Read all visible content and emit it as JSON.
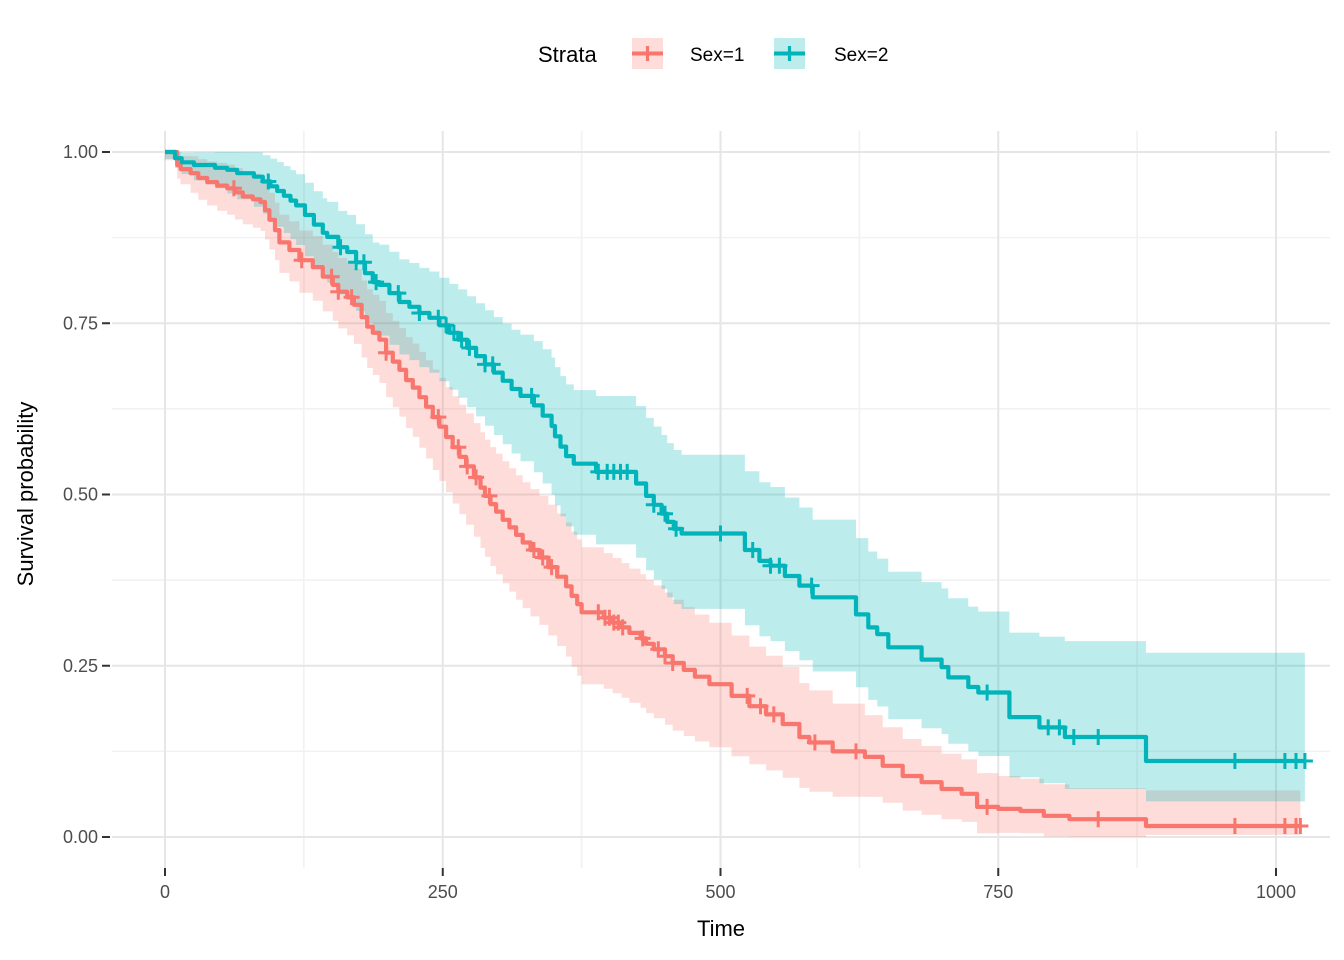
{
  "figure": {
    "background": "#FFFFFF",
    "grid_major_color": "#E6E6E6",
    "grid_minor_color": "#F1F1F1",
    "tick_mark_color": "#333333",
    "tick_label_color": "#4D4D4D"
  },
  "legend": {
    "title": "Strata",
    "items": [
      {
        "label": "Sex=1",
        "color": "#F8766D"
      },
      {
        "label": "Sex=2",
        "color": "#00B4B9"
      }
    ]
  },
  "chart_data": {
    "type": "line",
    "subtype": "kaplan-meier-step-with-confidence-bands",
    "title": "",
    "xlabel": "Time",
    "ylabel": "Survival probability",
    "xlim": [
      -15,
      1048
    ],
    "ylim": [
      0,
      1.03
    ],
    "grid": true,
    "legend_position": "top",
    "x_ticks": [
      0,
      250,
      500,
      750,
      1000
    ],
    "x_minor_ticks": [
      125,
      375,
      625,
      875
    ],
    "y_ticks": [
      0,
      0.25,
      0.5,
      0.75,
      1
    ],
    "y_tick_labels": [
      "0.00",
      "0.25",
      "0.50",
      "0.75",
      "1.00"
    ],
    "y_minor_ticks": [
      0.125,
      0.375,
      0.625,
      0.875
    ],
    "ci_opacity": 0.26,
    "series": [
      {
        "name": "Sex=1",
        "color": "#F8766D",
        "end_time": 1022,
        "steps": [
          [
            0,
            1.0
          ],
          [
            11,
            0.981
          ],
          [
            14,
            0.975
          ],
          [
            23,
            0.969
          ],
          [
            30,
            0.962
          ],
          [
            38,
            0.956
          ],
          [
            47,
            0.951
          ],
          [
            56,
            0.947
          ],
          [
            63,
            0.941
          ],
          [
            70,
            0.935
          ],
          [
            79,
            0.931
          ],
          [
            86,
            0.927
          ],
          [
            90,
            0.915
          ],
          [
            94,
            0.901
          ],
          [
            99,
            0.886
          ],
          [
            103,
            0.868
          ],
          [
            112,
            0.857
          ],
          [
            121,
            0.842
          ],
          [
            133,
            0.832
          ],
          [
            142,
            0.818
          ],
          [
            151,
            0.806
          ],
          [
            156,
            0.796
          ],
          [
            164,
            0.788
          ],
          [
            170,
            0.777
          ],
          [
            177,
            0.759
          ],
          [
            182,
            0.745
          ],
          [
            187,
            0.736
          ],
          [
            193,
            0.726
          ],
          [
            199,
            0.707
          ],
          [
            205,
            0.694
          ],
          [
            211,
            0.682
          ],
          [
            217,
            0.667
          ],
          [
            223,
            0.656
          ],
          [
            229,
            0.642
          ],
          [
            235,
            0.628
          ],
          [
            241,
            0.613
          ],
          [
            247,
            0.599
          ],
          [
            253,
            0.584
          ],
          [
            259,
            0.569
          ],
          [
            265,
            0.555
          ],
          [
            271,
            0.541
          ],
          [
            278,
            0.525
          ],
          [
            284,
            0.51
          ],
          [
            288,
            0.498
          ],
          [
            293,
            0.486
          ],
          [
            298,
            0.475
          ],
          [
            304,
            0.463
          ],
          [
            310,
            0.452
          ],
          [
            316,
            0.441
          ],
          [
            322,
            0.43
          ],
          [
            329,
            0.419
          ],
          [
            337,
            0.408
          ],
          [
            345,
            0.394
          ],
          [
            353,
            0.38
          ],
          [
            361,
            0.366
          ],
          [
            366,
            0.352
          ],
          [
            371,
            0.34
          ],
          [
            375,
            0.328
          ],
          [
            395,
            0.32
          ],
          [
            403,
            0.313
          ],
          [
            411,
            0.306
          ],
          [
            418,
            0.298
          ],
          [
            428,
            0.29
          ],
          [
            433,
            0.282
          ],
          [
            440,
            0.274
          ],
          [
            450,
            0.264
          ],
          [
            457,
            0.254
          ],
          [
            467,
            0.244
          ],
          [
            477,
            0.234
          ],
          [
            490,
            0.223
          ],
          [
            510,
            0.206
          ],
          [
            526,
            0.191
          ],
          [
            541,
            0.179
          ],
          [
            556,
            0.165
          ],
          [
            571,
            0.146
          ],
          [
            580,
            0.138
          ],
          [
            601,
            0.125
          ],
          [
            630,
            0.117
          ],
          [
            646,
            0.104
          ],
          [
            664,
            0.089
          ],
          [
            681,
            0.08
          ],
          [
            699,
            0.07
          ],
          [
            717,
            0.063
          ],
          [
            731,
            0.044
          ],
          [
            750,
            0.041
          ],
          [
            770,
            0.038
          ],
          [
            791,
            0.031
          ],
          [
            814,
            0.026
          ],
          [
            883,
            0.016
          ]
        ],
        "censor_times": [
          62,
          123,
          150,
          156,
          168,
          199,
          246,
          264,
          272,
          280,
          292,
          332,
          340,
          348,
          390,
          396,
          400,
          404,
          408,
          412,
          430,
          444,
          450,
          457,
          524,
          536,
          548,
          585,
          622,
          740,
          840,
          963,
          1008,
          1018,
          1022
        ],
        "ci_lo_offsets": [
          [
            0,
            0.012
          ],
          [
            25,
            0.03
          ],
          [
            50,
            0.038
          ],
          [
            100,
            0.044
          ],
          [
            150,
            0.052
          ],
          [
            200,
            0.065
          ],
          [
            250,
            0.08
          ],
          [
            300,
            0.092
          ],
          [
            375,
            0.105
          ],
          [
            450,
            0.1
          ],
          [
            550,
            0.08
          ],
          [
            650,
            0.053
          ],
          [
            750,
            0.035
          ],
          [
            810,
            0.028
          ],
          [
            880,
            0.013
          ],
          [
            1030,
            0.013
          ]
        ],
        "ci_hi_offsets": [
          [
            0,
            0.01
          ],
          [
            25,
            0.026
          ],
          [
            50,
            0.034
          ],
          [
            100,
            0.04
          ],
          [
            150,
            0.048
          ],
          [
            200,
            0.058
          ],
          [
            250,
            0.072
          ],
          [
            300,
            0.085
          ],
          [
            375,
            0.095
          ],
          [
            450,
            0.093
          ],
          [
            550,
            0.085
          ],
          [
            650,
            0.055
          ],
          [
            750,
            0.048
          ],
          [
            810,
            0.045
          ],
          [
            880,
            0.052
          ],
          [
            1030,
            0.052
          ]
        ]
      },
      {
        "name": "Sex=2",
        "color": "#00B4B9",
        "end_time": 1026,
        "steps": [
          [
            0,
            1.0
          ],
          [
            9,
            0.991
          ],
          [
            15,
            0.985
          ],
          [
            26,
            0.981
          ],
          [
            45,
            0.977
          ],
          [
            56,
            0.974
          ],
          [
            65,
            0.969
          ],
          [
            80,
            0.964
          ],
          [
            88,
            0.957
          ],
          [
            95,
            0.95
          ],
          [
            101,
            0.943
          ],
          [
            107,
            0.936
          ],
          [
            113,
            0.929
          ],
          [
            118,
            0.922
          ],
          [
            126,
            0.908
          ],
          [
            134,
            0.894
          ],
          [
            142,
            0.882
          ],
          [
            146,
            0.876
          ],
          [
            156,
            0.861
          ],
          [
            164,
            0.854
          ],
          [
            172,
            0.839
          ],
          [
            180,
            0.823
          ],
          [
            187,
            0.81
          ],
          [
            193,
            0.806
          ],
          [
            202,
            0.794
          ],
          [
            211,
            0.781
          ],
          [
            220,
            0.774
          ],
          [
            229,
            0.765
          ],
          [
            238,
            0.758
          ],
          [
            247,
            0.747
          ],
          [
            256,
            0.736
          ],
          [
            264,
            0.726
          ],
          [
            272,
            0.714
          ],
          [
            280,
            0.702
          ],
          [
            288,
            0.69
          ],
          [
            296,
            0.678
          ],
          [
            304,
            0.666
          ],
          [
            312,
            0.654
          ],
          [
            320,
            0.644
          ],
          [
            332,
            0.63
          ],
          [
            340,
            0.615
          ],
          [
            348,
            0.6
          ],
          [
            351,
            0.585
          ],
          [
            356,
            0.57
          ],
          [
            361,
            0.556
          ],
          [
            368,
            0.545
          ],
          [
            388,
            0.533
          ],
          [
            424,
            0.516
          ],
          [
            433,
            0.498
          ],
          [
            440,
            0.485
          ],
          [
            447,
            0.472
          ],
          [
            452,
            0.46
          ],
          [
            458,
            0.45
          ],
          [
            465,
            0.443
          ],
          [
            522,
            0.419
          ],
          [
            535,
            0.403
          ],
          [
            545,
            0.396
          ],
          [
            558,
            0.381
          ],
          [
            571,
            0.367
          ],
          [
            583,
            0.35
          ],
          [
            622,
            0.325
          ],
          [
            633,
            0.306
          ],
          [
            641,
            0.296
          ],
          [
            651,
            0.277
          ],
          [
            681,
            0.259
          ],
          [
            699,
            0.248
          ],
          [
            705,
            0.233
          ],
          [
            723,
            0.219
          ],
          [
            732,
            0.211
          ],
          [
            760,
            0.175
          ],
          [
            787,
            0.16
          ],
          [
            810,
            0.146
          ],
          [
            883,
            0.111
          ]
        ],
        "censor_times": [
          93,
          158,
          172,
          179,
          190,
          210,
          229,
          246,
          253,
          260,
          267,
          274,
          288,
          295,
          330,
          390,
          398,
          404,
          410,
          416,
          440,
          450,
          460,
          500,
          529,
          545,
          553,
          582,
          740,
          795,
          805,
          818,
          840,
          963,
          1008,
          1018,
          1026
        ],
        "ci_lo_offsets": [
          [
            0,
            0.01
          ],
          [
            25,
            0.022
          ],
          [
            50,
            0.032
          ],
          [
            100,
            0.052
          ],
          [
            150,
            0.068
          ],
          [
            200,
            0.075
          ],
          [
            250,
            0.082
          ],
          [
            300,
            0.092
          ],
          [
            375,
            0.105
          ],
          [
            450,
            0.11
          ],
          [
            550,
            0.11
          ],
          [
            650,
            0.105
          ],
          [
            750,
            0.09
          ],
          [
            810,
            0.076
          ],
          [
            880,
            0.059
          ],
          [
            1030,
            0.059
          ]
        ],
        "ci_hi_offsets": [
          [
            0,
            0.008
          ],
          [
            25,
            0.018
          ],
          [
            50,
            0.026
          ],
          [
            100,
            0.042
          ],
          [
            150,
            0.052
          ],
          [
            200,
            0.06
          ],
          [
            250,
            0.07
          ],
          [
            300,
            0.082
          ],
          [
            375,
            0.11
          ],
          [
            450,
            0.115
          ],
          [
            550,
            0.115
          ],
          [
            650,
            0.11
          ],
          [
            750,
            0.12
          ],
          [
            810,
            0.14
          ],
          [
            880,
            0.158
          ],
          [
            1030,
            0.158
          ]
        ]
      }
    ]
  }
}
